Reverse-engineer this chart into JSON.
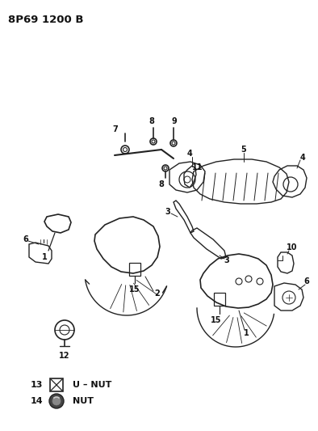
{
  "title": "8P69 1200 B",
  "bg": "#ffffff",
  "lc": "#222222",
  "tc": "#111111",
  "figsize": [
    3.94,
    5.33
  ],
  "dpi": 100
}
